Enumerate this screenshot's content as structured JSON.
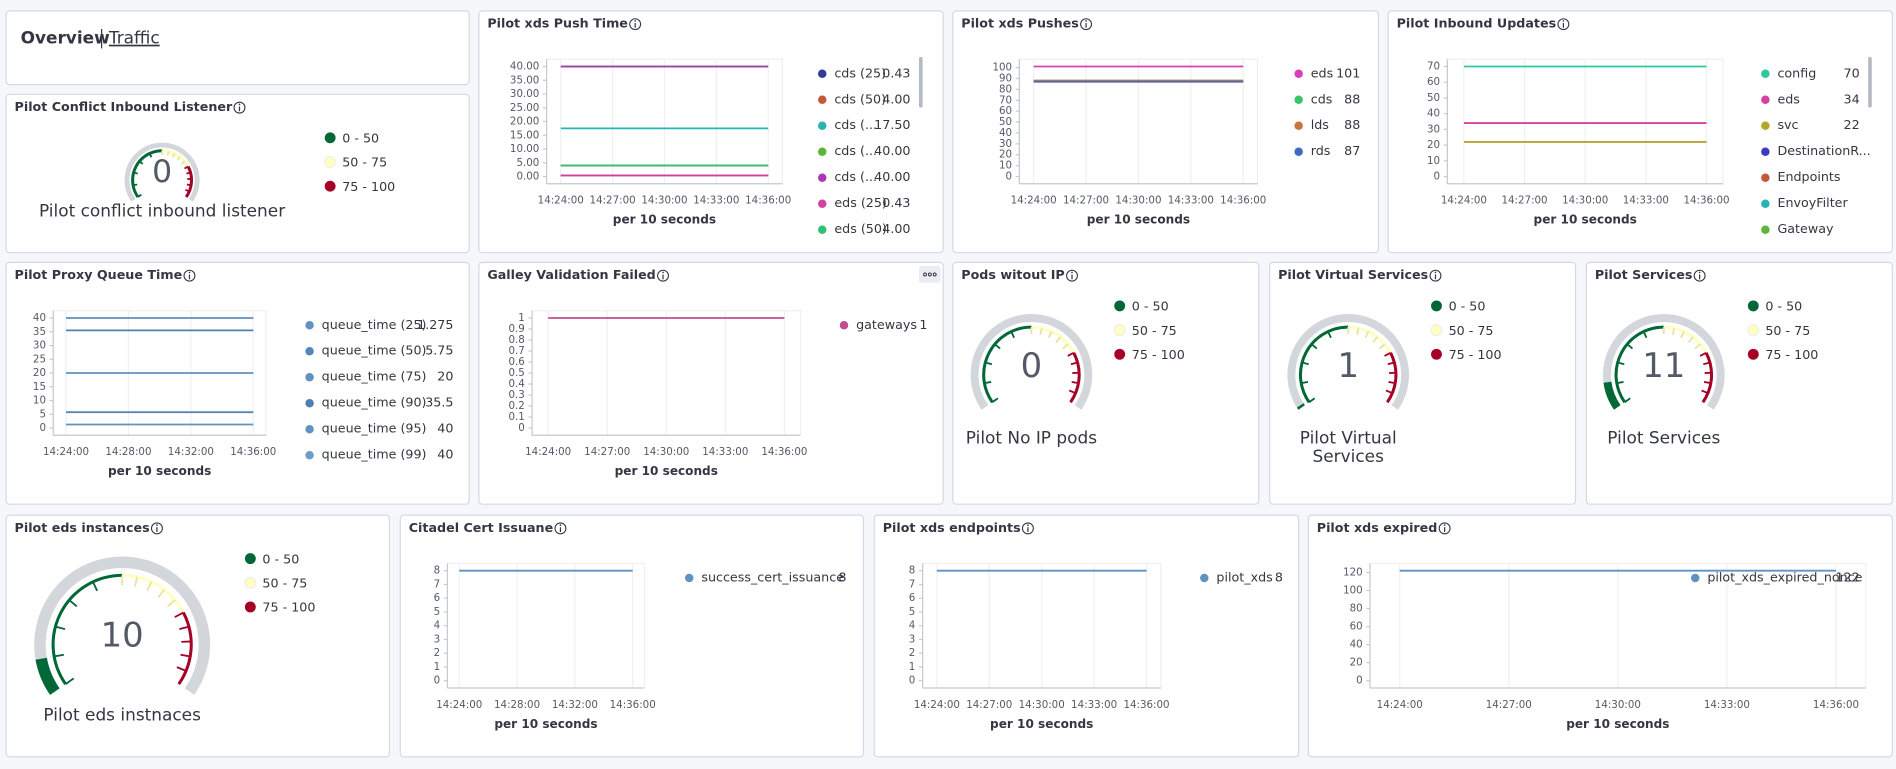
{
  "header": {
    "title": "Overview",
    "link": "Traffic"
  },
  "panels": [
    {
      "type": "gauge",
      "title": "Pilot Conflict Inbound Listener",
      "value": 0,
      "label": "Pilot conflict inbound listener",
      "ranges": [
        {
          "label": "0 - 50",
          "from": 0,
          "to": 50,
          "color": "#006837"
        },
        {
          "label": "50 - 75",
          "from": 50,
          "to": 75,
          "color": "#ffffbf"
        },
        {
          "label": "75 - 100",
          "from": 75,
          "to": 100,
          "color": "#a50026"
        }
      ]
    },
    {
      "type": "line",
      "title": "Pilot xds Push Time",
      "x_label": "per 10 seconds",
      "categories": [
        "14:24:00",
        "14:27:00",
        "14:30:00",
        "14:33:00",
        "14:36:00"
      ],
      "ylim": [
        0,
        40
      ],
      "yticks": [
        {
          "value": 0,
          "label": "0.00"
        },
        {
          "value": 5,
          "label": "5.00"
        },
        {
          "value": 10,
          "label": "10.00"
        },
        {
          "value": 15,
          "label": "15.00"
        },
        {
          "value": 20,
          "label": "20.00"
        },
        {
          "value": 25,
          "label": "25.00"
        },
        {
          "value": 30,
          "label": "30.00"
        },
        {
          "value": 35,
          "label": "35.00"
        },
        {
          "value": 40,
          "label": "40.00"
        }
      ],
      "series": [
        {
          "name": "cds (25)",
          "color": "#2f3a9e",
          "values": [
            0.43,
            0.43,
            0.43,
            0.43,
            0.43
          ]
        },
        {
          "name": "cds (50)",
          "color": "#c25a3a",
          "values": [
            4,
            4,
            4,
            4,
            4
          ],
          "value_labels": [
            "4.00",
            "4.00",
            "4.00",
            "4.00",
            "4.00"
          ]
        },
        {
          "name": "cds (...",
          "color": "#29b3b3",
          "values": [
            17.5,
            17.5,
            17.5,
            17.5,
            17.5
          ],
          "value_labels": [
            "17.50",
            "17.50",
            "17.50",
            "17.50",
            "17.50"
          ]
        },
        {
          "name": "cds (...",
          "color": "#5ab53a",
          "values": [
            40,
            40,
            40,
            40,
            40
          ],
          "value_labels": [
            "40.00",
            "40.00",
            "40.00",
            "40.00",
            "40.00"
          ]
        },
        {
          "name": "cds (...",
          "color": "#a63bb5",
          "values": [
            40,
            40,
            40,
            40,
            40
          ],
          "value_labels": [
            "40.00",
            "40.00",
            "40.00",
            "40.00",
            "40.00"
          ]
        },
        {
          "name": "eds (25)",
          "color": "#d6409f",
          "values": [
            0.43,
            0.43,
            0.43,
            0.43,
            0.43
          ]
        },
        {
          "name": "eds (50)",
          "color": "#2ec276",
          "values": [
            4,
            4,
            4,
            4,
            4
          ],
          "value_labels": [
            "4.00",
            "4.00",
            "4.00",
            "4.00",
            "4.00"
          ]
        }
      ]
    },
    {
      "type": "line",
      "title": "Pilot xds Pushes",
      "x_label": "per 10 seconds",
      "categories": [
        "14:24:00",
        "14:27:00",
        "14:30:00",
        "14:33:00",
        "14:36:00"
      ],
      "ylim": [
        0,
        101
      ],
      "yticks": [
        0,
        10,
        20,
        30,
        40,
        50,
        60,
        70,
        80,
        90,
        100
      ],
      "series": [
        {
          "name": "eds",
          "color": "#d63fb5",
          "values": [
            101,
            101,
            101,
            101,
            101
          ]
        },
        {
          "name": "cds",
          "color": "#3cc46a",
          "values": [
            88,
            88,
            88,
            88,
            88
          ]
        },
        {
          "name": "lds",
          "color": "#c8763c",
          "values": [
            88,
            88,
            88,
            88,
            88
          ]
        },
        {
          "name": "rds",
          "color": "#3f6ac0",
          "values": [
            87,
            87,
            87,
            87,
            87
          ]
        }
      ]
    },
    {
      "type": "line",
      "title": "Pilot Inbound Updates",
      "x_label": "per 10 seconds",
      "categories": [
        "14:24:00",
        "14:27:00",
        "14:30:00",
        "14:33:00",
        "14:36:00"
      ],
      "ylim": [
        0,
        70
      ],
      "yticks": [
        0,
        10,
        20,
        30,
        40,
        50,
        60,
        70
      ],
      "series": [
        {
          "name": "config",
          "color": "#2ec79b",
          "values": [
            70,
            70,
            70,
            70,
            70
          ]
        },
        {
          "name": "eds",
          "color": "#d6409f",
          "values": [
            34,
            34,
            34,
            34,
            34
          ]
        },
        {
          "name": "svc",
          "color": "#b5a52b",
          "values": [
            22,
            22,
            22,
            22,
            22
          ]
        },
        {
          "name": "DestinationR...",
          "color": "#3b3bbf",
          "values": [
            null,
            null,
            null,
            null,
            null
          ]
        },
        {
          "name": "Endpoints",
          "color": "#c25a3a",
          "values": [
            null,
            null,
            null,
            null,
            null
          ]
        },
        {
          "name": "EnvoyFilter",
          "color": "#29b3b3",
          "values": [
            null,
            null,
            null,
            null,
            null
          ]
        },
        {
          "name": "Gateway",
          "color": "#5ab53a",
          "values": [
            null,
            null,
            null,
            null,
            null
          ]
        }
      ]
    },
    {
      "type": "line",
      "title": "Pilot Proxy Queue Time",
      "x_label": "per 10 seconds",
      "categories": [
        "14:24:00",
        "14:28:00",
        "14:32:00",
        "14:36:00"
      ],
      "ylim": [
        0,
        40
      ],
      "yticks": [
        0,
        5,
        10,
        15,
        20,
        25,
        30,
        35,
        40
      ],
      "series": [
        {
          "name": "queue_time (25)",
          "color": "#6092c0",
          "values": [
            1.275,
            1.275,
            1.275,
            1.275
          ]
        },
        {
          "name": "queue_time (50)",
          "color": "#5487b8",
          "values": [
            5.75,
            5.75,
            5.75,
            5.75
          ]
        },
        {
          "name": "queue_time (75)",
          "color": "#6092c0",
          "values": [
            20,
            20,
            20,
            20
          ]
        },
        {
          "name": "queue_time (90)",
          "color": "#4c80b2",
          "values": [
            35.5,
            35.5,
            35.5,
            35.5
          ]
        },
        {
          "name": "queue_time (95)",
          "color": "#6092c0",
          "values": [
            40,
            40,
            40,
            40
          ]
        },
        {
          "name": "queue_time (99)",
          "color": "#6d9cc7",
          "values": [
            40,
            40,
            40,
            40
          ]
        }
      ]
    },
    {
      "type": "line",
      "title": "Galley Validation Failed",
      "x_label": "per 10 seconds",
      "categories": [
        "14:24:00",
        "14:27:00",
        "14:30:00",
        "14:33:00",
        "14:36:00"
      ],
      "ylim": [
        0,
        1
      ],
      "yticks": [
        0,
        0.1,
        0.2,
        0.3,
        0.4,
        0.5,
        0.6,
        0.7,
        0.8,
        0.9,
        1
      ],
      "series": [
        {
          "name": "gateways",
          "color": "#c34e8d",
          "values": [
            1,
            1,
            1,
            1,
            1
          ]
        }
      ]
    },
    {
      "type": "gauge",
      "title": "Pods witout IP",
      "value": 0,
      "label": "Pilot No IP pods",
      "ranges": [
        {
          "label": "0 - 50",
          "from": 0,
          "to": 50,
          "color": "#006837"
        },
        {
          "label": "50 - 75",
          "from": 50,
          "to": 75,
          "color": "#ffffbf"
        },
        {
          "label": "75 - 100",
          "from": 75,
          "to": 100,
          "color": "#a50026"
        }
      ]
    },
    {
      "type": "gauge",
      "title": "Pilot Virtual Services",
      "value": 1,
      "label": "Pilot Virtual Services",
      "ranges": [
        {
          "label": "0 - 50",
          "from": 0,
          "to": 50,
          "color": "#006837"
        },
        {
          "label": "50 - 75",
          "from": 50,
          "to": 75,
          "color": "#ffffbf"
        },
        {
          "label": "75 - 100",
          "from": 75,
          "to": 100,
          "color": "#a50026"
        }
      ]
    },
    {
      "type": "gauge",
      "title": "Pilot Services",
      "value": 11,
      "label": "Pilot Services",
      "ranges": [
        {
          "label": "0 - 50",
          "from": 0,
          "to": 50,
          "color": "#006837"
        },
        {
          "label": "50 - 75",
          "from": 50,
          "to": 75,
          "color": "#ffffbf"
        },
        {
          "label": "75 - 100",
          "from": 75,
          "to": 100,
          "color": "#a50026"
        }
      ]
    },
    {
      "type": "gauge",
      "title": "Pilot eds instances",
      "value": 10,
      "label": "Pilot eds instnaces",
      "ranges": [
        {
          "label": "0 - 50",
          "from": 0,
          "to": 50,
          "color": "#006837"
        },
        {
          "label": "50 - 75",
          "from": 50,
          "to": 75,
          "color": "#ffffbf"
        },
        {
          "label": "75 - 100",
          "from": 75,
          "to": 100,
          "color": "#a50026"
        }
      ]
    },
    {
      "type": "line",
      "title": "Citadel Cert Issuane",
      "x_label": "per 10 seconds",
      "categories": [
        "14:24:00",
        "14:28:00",
        "14:32:00",
        "14:36:00"
      ],
      "ylim": [
        0,
        8
      ],
      "yticks": [
        0,
        1,
        2,
        3,
        4,
        5,
        6,
        7,
        8
      ],
      "series": [
        {
          "name": "success_cert_issuance",
          "color": "#6092c0",
          "values": [
            8,
            8,
            8,
            8
          ]
        }
      ]
    },
    {
      "type": "line",
      "title": "Pilot xds endpoints",
      "x_label": "per 10 seconds",
      "categories": [
        "14:24:00",
        "14:27:00",
        "14:30:00",
        "14:33:00",
        "14:36:00"
      ],
      "ylim": [
        0,
        8
      ],
      "yticks": [
        0,
        1,
        2,
        3,
        4,
        5,
        6,
        7,
        8
      ],
      "series": [
        {
          "name": "pilot_xds",
          "color": "#6092c0",
          "values": [
            8,
            8,
            8,
            8,
            8
          ]
        }
      ]
    },
    {
      "type": "line",
      "title": "Pilot xds expired",
      "x_label": "per 10 seconds",
      "categories": [
        "14:24:00",
        "14:27:00",
        "14:30:00",
        "14:33:00",
        "14:36:00"
      ],
      "ylim": [
        0,
        122
      ],
      "yticks": [
        0,
        20,
        40,
        60,
        80,
        100,
        120
      ],
      "series": [
        {
          "name": "pilot_xds_expired_nonce",
          "color": "#6092c0",
          "values": [
            122,
            122,
            122,
            122,
            122
          ]
        }
      ]
    }
  ]
}
